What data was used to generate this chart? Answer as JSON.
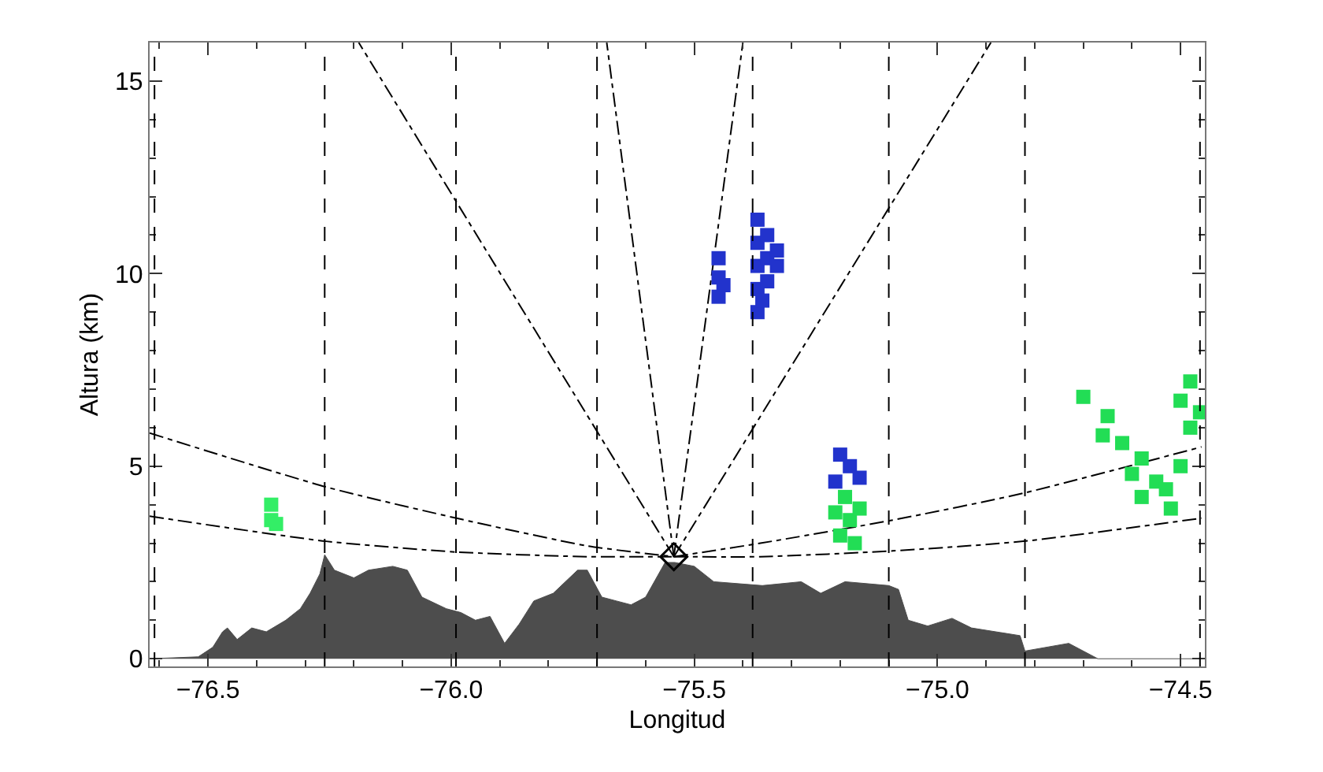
{
  "chart_data": {
    "type": "line",
    "xlabel": "Longitud",
    "ylabel": "Altura (km)",
    "xlim": [
      -76.62,
      -74.45
    ],
    "ylim": [
      -0.2,
      16
    ],
    "xticks": [
      {
        "value": -76.5,
        "label": "−76.5"
      },
      {
        "value": -76.0,
        "label": "−76.0"
      },
      {
        "value": -75.5,
        "label": "−75.5"
      },
      {
        "value": -75.0,
        "label": "−75.0"
      },
      {
        "value": -74.5,
        "label": "−74.5"
      }
    ],
    "yticks": [
      0,
      5,
      10,
      15
    ],
    "series": [
      {
        "type": "area",
        "color": "#4d4d4d",
        "x": [
          -76.62,
          -76.52,
          -76.49,
          -76.47,
          -76.46,
          -76.44,
          -76.41,
          -76.38,
          -76.34,
          -76.31,
          -76.29,
          -76.27,
          -76.26,
          -76.24,
          -76.2,
          -76.17,
          -76.12,
          -76.09,
          -76.06,
          -76.01,
          -75.98,
          -75.95,
          -75.92,
          -75.89,
          -75.86,
          -75.83,
          -75.79,
          -75.74,
          -75.72,
          -75.69,
          -75.66,
          -75.63,
          -75.6,
          -75.56,
          -75.54,
          -75.5,
          -75.46,
          -75.36,
          -75.28,
          -75.24,
          -75.19,
          -75.1,
          -75.08,
          -75.06,
          -75.02,
          -74.97,
          -74.93,
          -74.83,
          -74.82,
          -74.73,
          -74.67,
          -74.5,
          -74.45
        ],
        "values": [
          0.0,
          0.05,
          0.3,
          0.7,
          0.8,
          0.5,
          0.8,
          0.7,
          1.0,
          1.3,
          1.7,
          2.2,
          2.7,
          2.3,
          2.1,
          2.3,
          2.4,
          2.3,
          1.6,
          1.3,
          1.2,
          1.0,
          1.1,
          0.4,
          0.9,
          1.5,
          1.7,
          2.3,
          2.3,
          1.6,
          1.5,
          1.4,
          1.6,
          2.5,
          2.5,
          2.4,
          2.0,
          1.9,
          2.0,
          1.7,
          2.0,
          1.9,
          1.8,
          1.0,
          0.85,
          1.05,
          0.8,
          0.6,
          0.2,
          0.4,
          0.0,
          0.0,
          0.0
        ]
      },
      {
        "color": "#000000",
        "line_style": "dashdot",
        "x": [
          -76.62,
          -76.257,
          -75.989,
          -75.72,
          -75.542
        ],
        "values": [
          5.86,
          4.46,
          3.65,
          2.93,
          2.65
        ]
      },
      {
        "color": "#000000",
        "line_style": "dashdot",
        "x": [
          -76.62,
          -76.257,
          -75.989,
          -75.72,
          -75.542
        ],
        "values": [
          3.7,
          3.05,
          2.77,
          2.65,
          2.65
        ]
      },
      {
        "color": "#000000",
        "line_style": "dashdot",
        "x": [
          -75.542,
          -75.364,
          -75.092,
          -74.823,
          -74.457
        ],
        "values": [
          2.65,
          3.0,
          3.6,
          4.3,
          5.5
        ]
      },
      {
        "color": "#000000",
        "line_style": "dashdot",
        "x": [
          -75.542,
          -75.364,
          -75.092,
          -74.823,
          -74.457
        ],
        "values": [
          2.65,
          2.65,
          2.8,
          3.05,
          3.65
        ]
      },
      {
        "color": "#000000",
        "line_style": "dashdot",
        "x": [
          -75.542,
          -76.19
        ],
        "values": [
          2.65,
          16
        ]
      },
      {
        "color": "#000000",
        "line_style": "dashdot",
        "x": [
          -75.542,
          -75.68
        ],
        "values": [
          2.65,
          16
        ]
      },
      {
        "color": "#000000",
        "line_style": "dashdot",
        "x": [
          -75.542,
          -75.4
        ],
        "values": [
          2.65,
          16
        ]
      },
      {
        "color": "#000000",
        "line_style": "dashdot",
        "x": [
          -75.542,
          -74.89
        ],
        "values": [
          2.65,
          16
        ]
      },
      {
        "type": "scatter",
        "marker": "square",
        "color": "#33ee66",
        "x": [
          -76.37,
          -76.37,
          -76.36
        ],
        "values": [
          3.6,
          4.0,
          3.5
        ]
      },
      {
        "type": "scatter",
        "marker": "square",
        "color": "#2233cc",
        "x": [
          -75.45,
          -75.45,
          -75.45,
          -75.44,
          -75.37,
          -75.37,
          -75.37,
          -75.37,
          -75.37,
          -75.35,
          -75.35,
          -75.35,
          -75.33,
          -75.33,
          -75.36
        ],
        "values": [
          9.4,
          9.9,
          10.4,
          9.7,
          9.0,
          9.6,
          10.2,
          10.8,
          11.4,
          9.8,
          10.4,
          11.0,
          10.2,
          10.6,
          9.3
        ]
      },
      {
        "type": "scatter",
        "marker": "square",
        "color": "#2233cc",
        "x": [
          -75.2,
          -75.18,
          -75.21,
          -75.16
        ],
        "values": [
          5.3,
          5.0,
          4.6,
          4.7
        ]
      },
      {
        "type": "scatter",
        "marker": "square",
        "color": "#22dd55",
        "x": [
          -75.2,
          -75.18,
          -75.16,
          -75.19,
          -75.17,
          -75.21,
          -74.7,
          -74.65,
          -74.62,
          -74.58,
          -74.55,
          -74.58,
          -74.52,
          -74.5,
          -74.48,
          -74.5,
          -74.48,
          -74.46,
          -74.53,
          -74.6,
          -74.66
        ],
        "values": [
          3.2,
          3.6,
          3.9,
          4.2,
          3.0,
          3.8,
          6.8,
          6.3,
          5.6,
          5.2,
          4.6,
          4.2,
          3.9,
          5.0,
          6.0,
          6.7,
          7.2,
          6.4,
          4.4,
          4.8,
          5.8
        ]
      },
      {
        "type": "scatter",
        "marker": "diamond",
        "color": "#000000",
        "x": [
          -75.542
        ],
        "values": [
          2.65
        ]
      }
    ],
    "ref_lines": [
      {
        "axis": "x",
        "value": -76.61,
        "color": "#000000",
        "line_style": "dashed"
      },
      {
        "axis": "x",
        "value": -76.26,
        "color": "#000000",
        "line_style": "dashed"
      },
      {
        "axis": "x",
        "value": -75.99,
        "color": "#000000",
        "line_style": "dashed"
      },
      {
        "axis": "x",
        "value": -75.7,
        "color": "#000000",
        "line_style": "dashed"
      },
      {
        "axis": "x",
        "value": -75.38,
        "color": "#000000",
        "line_style": "dashed"
      },
      {
        "axis": "x",
        "value": -75.1,
        "color": "#000000",
        "line_style": "dashed"
      },
      {
        "axis": "x",
        "value": -74.82,
        "color": "#000000",
        "line_style": "dashed"
      },
      {
        "axis": "x",
        "value": -74.46,
        "color": "#000000",
        "line_style": "dashed"
      }
    ]
  }
}
